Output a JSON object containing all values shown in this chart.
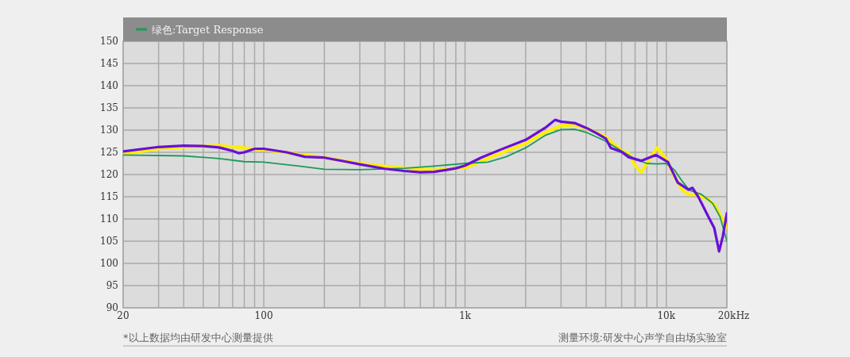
{
  "chart_data": {
    "type": "line",
    "log": "x",
    "xlim": [
      20,
      20000
    ],
    "ylim": [
      90,
      150
    ],
    "xticks": [
      {
        "value": 20,
        "label": "20"
      },
      {
        "value": 30,
        "label": null
      },
      {
        "value": 40,
        "label": null
      },
      {
        "value": 50,
        "label": null
      },
      {
        "value": 60,
        "label": null
      },
      {
        "value": 70,
        "label": null
      },
      {
        "value": 80,
        "label": null
      },
      {
        "value": 90,
        "label": null
      },
      100,
      {
        "value": 200,
        "label": null
      },
      {
        "value": 300,
        "label": null
      },
      {
        "value": 400,
        "label": null
      },
      {
        "value": 500,
        "label": null
      },
      {
        "value": 600,
        "label": null
      },
      {
        "value": 700,
        "label": null
      },
      {
        "value": 800,
        "label": null
      },
      {
        "value": 900,
        "label": null
      },
      {
        "value": 1000,
        "label": "1k"
      },
      {
        "value": 2000,
        "label": null
      },
      {
        "value": 3000,
        "label": null
      },
      {
        "value": 4000,
        "label": null
      },
      {
        "value": 5000,
        "label": null
      },
      {
        "value": 6000,
        "label": null
      },
      {
        "value": 7000,
        "label": null
      },
      {
        "value": 8000,
        "label": null
      },
      {
        "value": 9000,
        "label": null
      },
      {
        "value": 10000,
        "label": "10k"
      },
      {
        "value": 20000,
        "label": "20k"
      }
    ],
    "xlabel": "Hz",
    "yticks": [
      90,
      95,
      100,
      105,
      110,
      115,
      120,
      125,
      130,
      135,
      140,
      145,
      150
    ],
    "grid": true,
    "legend": "top",
    "series": [
      {
        "color": "#ffee00",
        "x": [
          20,
          30,
          40,
          60,
          80,
          100,
          150,
          200,
          300,
          500,
          700,
          1000,
          1500,
          2000,
          2500,
          3000,
          3500,
          4000,
          5000,
          6000,
          6500,
          7000,
          7500,
          8000,
          9000,
          10000,
          11000,
          12000,
          13000,
          14000,
          16000,
          17500,
          19000,
          20000
        ],
        "values": [
          124.6,
          125.8,
          126.2,
          126.5,
          126,
          125.6,
          124.5,
          123.8,
          122.5,
          121.4,
          121,
          121.5,
          124.8,
          127,
          129.5,
          131,
          131.2,
          130.4,
          128.5,
          125.3,
          124.8,
          122,
          120.5,
          122.5,
          126,
          123.5,
          119.5,
          116.5,
          115.5,
          115.5,
          114.5,
          113,
          110,
          108
        ]
      },
      {
        "name": "绿色:Target Response",
        "color": "#1e9a5a",
        "x": [
          20,
          40,
          60,
          80,
          100,
          150,
          200,
          300,
          500,
          700,
          1000,
          1300,
          1600,
          2000,
          2500,
          3000,
          3500,
          4000,
          5000,
          6000,
          7000,
          8000,
          9000,
          10000,
          11000,
          12000,
          13000,
          15000,
          17000,
          18500,
          20000
        ],
        "values": [
          124.4,
          124.2,
          123.6,
          122.9,
          122.8,
          121.9,
          121.2,
          121.1,
          121.4,
          121.9,
          122.5,
          122.8,
          124,
          126,
          128.8,
          130.1,
          130.2,
          129.5,
          127.5,
          125.3,
          123.5,
          122.5,
          122.4,
          122.5,
          121,
          118.5,
          116.5,
          115.5,
          113.5,
          110.5,
          105
        ]
      },
      {
        "color": "#6a0fd8",
        "x": [
          20,
          30,
          40,
          50,
          60,
          70,
          75,
          80,
          90,
          100,
          130,
          160,
          200,
          250,
          300,
          400,
          500,
          600,
          700,
          800,
          900,
          1000,
          1200,
          1500,
          2000,
          2500,
          2800,
          3000,
          3500,
          4000,
          4500,
          5000,
          5300,
          6000,
          6500,
          7500,
          8900,
          10200,
          11400,
          12900,
          13500,
          14500,
          16400,
          17300,
          18300,
          19100,
          20000
        ],
        "values": [
          125.2,
          126.2,
          126.5,
          126.4,
          126.1,
          125.3,
          124.8,
          125,
          125.8,
          125.8,
          125,
          124,
          123.8,
          123,
          122.3,
          121.3,
          120.8,
          120.5,
          120.6,
          121,
          121.4,
          122,
          123.8,
          125.6,
          127.8,
          130.5,
          132.3,
          131.9,
          131.6,
          130.5,
          129.3,
          128.1,
          126,
          125.1,
          123.9,
          123.1,
          124.4,
          122.8,
          118.2,
          116.6,
          117,
          114.8,
          110,
          108,
          102.7,
          106.1,
          111.3
        ]
      }
    ],
    "annotations": [
      "*以上数据均由研发中心测量提供",
      "测量环境:研发中心声学自由场实验室"
    ]
  }
}
